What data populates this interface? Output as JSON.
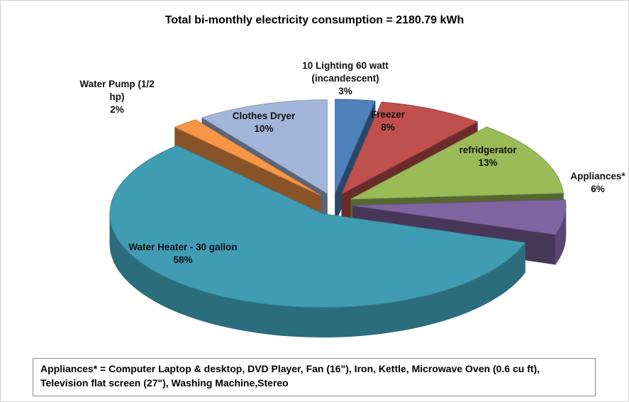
{
  "chart_data": {
    "type": "pie3d",
    "title": "Total bi-monthly electricity consumption = 2180.79 kWh",
    "categories": [
      "10 Lighting 60 watt (incandescent)",
      "Freezer",
      "refridgerator",
      "Appliances*",
      "Water Heater - 30 gallon",
      "Water Pump (1/2 hp)",
      "Clothes Dryer"
    ],
    "values": [
      3,
      8,
      13,
      6,
      58,
      2,
      10
    ],
    "value_labels": [
      "3%",
      "8%",
      "13%",
      "6%",
      "58%",
      "2%",
      "10%"
    ],
    "colors": [
      "#4f81bd",
      "#c0504d",
      "#9bbb59",
      "#8064a2",
      "#3f9cb3",
      "#f79646",
      "#a3b6da"
    ],
    "footnote": "Appliances* = Computer Laptop & desktop, DVD Player, Fan (16\"), Iron, Kettle, Microwave Oven (0.6 cu ft), Television flat screen (27\"), Washing Machine,Stereo"
  }
}
